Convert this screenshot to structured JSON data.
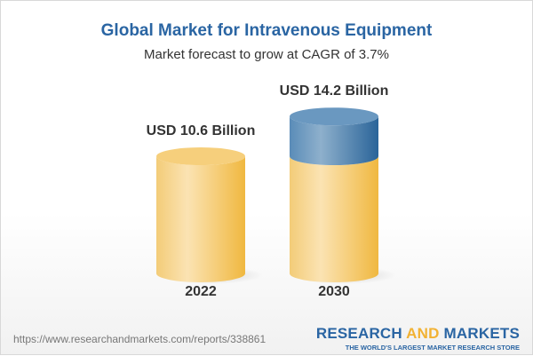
{
  "chart_data": {
    "type": "bar",
    "title": "Global Market for Intravenous Equipment",
    "subtitle": "Market forecast to grow at CAGR of 3.7%",
    "categories": [
      "2022",
      "2030"
    ],
    "values": [
      10.6,
      14.2
    ],
    "data_labels": [
      "USD 10.6 Billion",
      "USD 14.2 Billion"
    ],
    "style": "3d-cylinder",
    "colors": {
      "base": "#f2c060",
      "growth": "#3f78a8",
      "title": "#2a65a3"
    },
    "grid": false
  },
  "footer": {
    "url": "https://www.researchandmarkets.com/reports/338861",
    "logo_part1": "RESEARCH ",
    "logo_part2": "AND",
    "logo_part3": " MARKETS",
    "tagline": "THE WORLD'S LARGEST MARKET RESEARCH STORE"
  }
}
